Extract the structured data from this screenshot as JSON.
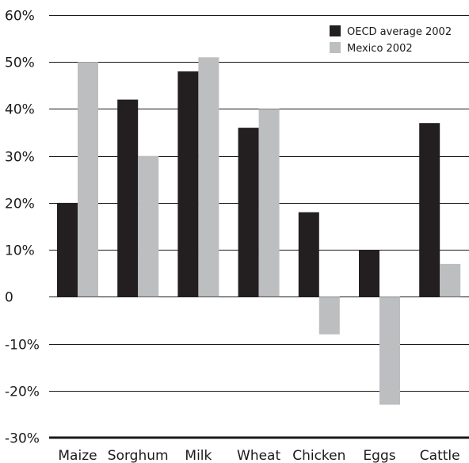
{
  "chart_data": {
    "type": "bar",
    "categories": [
      "Maize",
      "Sorghum",
      "Milk",
      "Wheat",
      "Chicken",
      "Eggs",
      "Cattle"
    ],
    "series": [
      {
        "name": "OECD average 2002",
        "values": [
          20,
          42,
          48,
          36,
          18,
          10,
          37
        ],
        "color": "#231f20"
      },
      {
        "name": "Mexico 2002",
        "values": [
          50,
          30,
          51,
          40,
          -8,
          -23,
          7
        ],
        "color": "#bcbec0"
      }
    ],
    "yticks": [
      "60%",
      "50%",
      "40%",
      "30%",
      "20%",
      "10%",
      "0",
      "-10%",
      "-20%",
      "-30%"
    ],
    "ylim": [
      -30,
      60
    ],
    "grid": true,
    "legend_position": "top-right",
    "title": "",
    "xlabel": "",
    "ylabel": ""
  }
}
